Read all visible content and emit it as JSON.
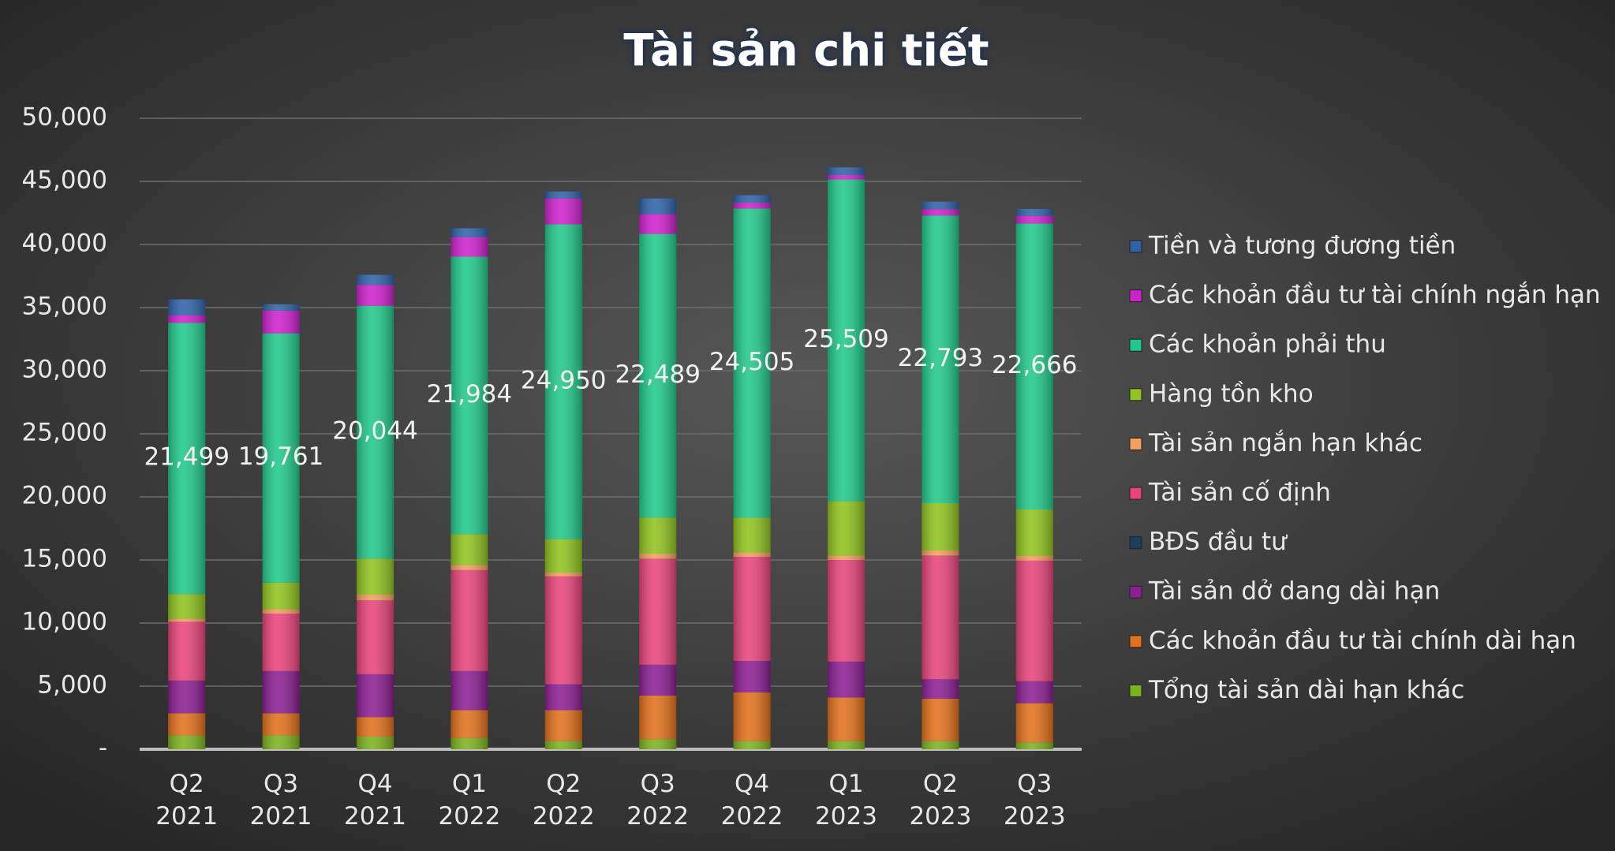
{
  "chart_data": {
    "type": "stacked_bar",
    "title": "Tài sản chi tiết",
    "categories": [
      "Q2 2021",
      "Q3 2021",
      "Q4 2021",
      "Q1 2022",
      "Q2 2022",
      "Q3 2022",
      "Q4 2022",
      "Q1 2023",
      "Q2 2023",
      "Q3 2023"
    ],
    "ylim": [
      0,
      50000
    ],
    "yticks": [
      {
        "value": 0,
        "label": "-"
      },
      {
        "value": 5000,
        "label": "5,000"
      },
      {
        "value": 10000,
        "label": "10,000"
      },
      {
        "value": 15000,
        "label": "15,000"
      },
      {
        "value": 20000,
        "label": "20,000"
      },
      {
        "value": 25000,
        "label": "25,000"
      },
      {
        "value": 30000,
        "label": "30,000"
      },
      {
        "value": 35000,
        "label": "35,000"
      },
      {
        "value": 40000,
        "label": "40,000"
      },
      {
        "value": 45000,
        "label": "45,000"
      },
      {
        "value": 50000,
        "label": "50,000"
      }
    ],
    "grid": true,
    "legend": "right",
    "series": [
      {
        "name": "Tổng tài sản dài hạn khác",
        "color": "#7db21f",
        "values": [
          1100,
          1100,
          1000,
          900,
          650,
          800,
          650,
          650,
          650,
          550
        ]
      },
      {
        "name": "Các khoản đầu tư tài chính dài hạn",
        "color": "#e2711d",
        "values": [
          1750,
          1750,
          1550,
          2200,
          2450,
          3450,
          3850,
          3450,
          3350,
          3100
        ]
      },
      {
        "name": "Tài sản dở dang dài hạn",
        "color": "#8c1f93",
        "values": [
          2600,
          3350,
          3400,
          3100,
          2050,
          2450,
          2500,
          2850,
          1550,
          1750
        ]
      },
      {
        "name": "BĐS đầu tư",
        "color": "#1f3d5e",
        "values": [
          0,
          0,
          0,
          0,
          0,
          0,
          0,
          0,
          0,
          0
        ]
      },
      {
        "name": "Tài sản cố định",
        "color": "#e8457c",
        "values": [
          4650,
          4550,
          5850,
          8000,
          8550,
          8400,
          8250,
          8050,
          9800,
          9550
        ]
      },
      {
        "name": "Tài sản ngắn hạn khác",
        "color": "#f2a05e",
        "values": [
          250,
          350,
          450,
          400,
          300,
          400,
          350,
          350,
          400,
          400
        ]
      },
      {
        "name": "Hàng tồn kho",
        "color": "#90c41f",
        "values": [
          1950,
          2100,
          2850,
          2450,
          2650,
          2850,
          2750,
          4300,
          3750,
          3650
        ]
      },
      {
        "name": "Các khoản phải thu",
        "color": "#22c98c",
        "values": [
          21499,
          19761,
          20044,
          21984,
          24950,
          22489,
          24505,
          25509,
          22793,
          22666
        ],
        "value_labels": [
          "21,499",
          "19,761",
          "20,044",
          "21,984",
          "24,950",
          "22,489",
          "24,505",
          "25,509",
          "22,793",
          "22,666"
        ]
      },
      {
        "name": "Các khoản đầu tư tài chính ngắn hạn",
        "color": "#cf22cf",
        "values": [
          600,
          1800,
          1650,
          1550,
          2050,
          1560,
          450,
          350,
          500,
          600
        ]
      },
      {
        "name": "Tiền và tương đương tiền",
        "color": "#2f63a8",
        "values": [
          1250,
          500,
          800,
          700,
          550,
          1250,
          600,
          600,
          600,
          550
        ]
      }
    ]
  }
}
